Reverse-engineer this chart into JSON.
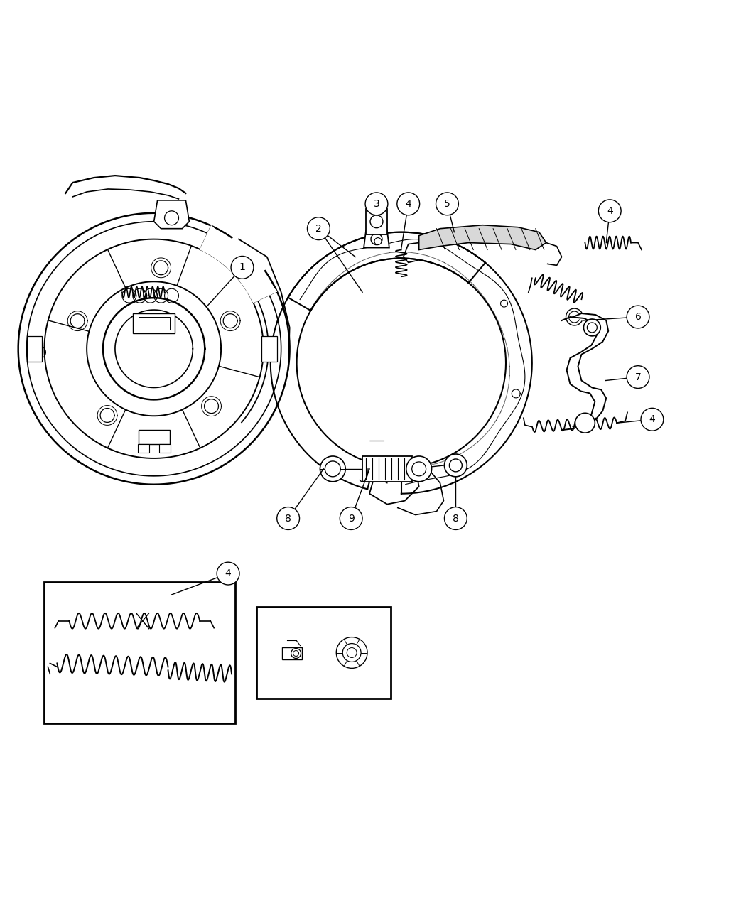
{
  "bg_color": "#ffffff",
  "line_color": "#000000",
  "fig_width": 10.5,
  "fig_height": 12.75,
  "dpi": 100
}
